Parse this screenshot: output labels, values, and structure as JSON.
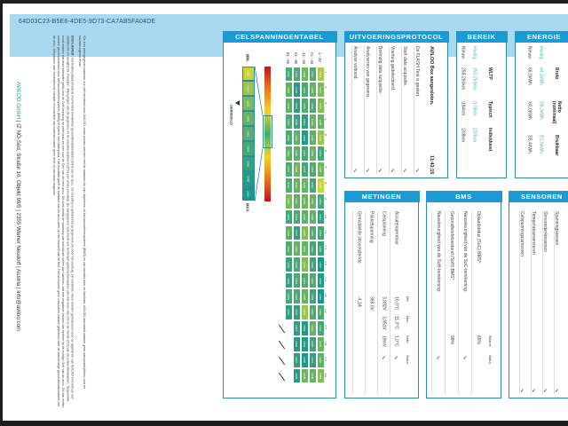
{
  "document_id": "64D03C23-B5E6-4DE5-9D73-CA7AB5FA04DE",
  "disclaimer": {
    "note": "*De hier weergegeven waarden zijn niet berekend door AVILOO, maar komen overeen met de waarden die zijn uitgelezen uit het accubeheersysteem (BMS) en zijn bepaald door de fabrikant. AVILOO aanvaardt daarom geen aansprakelijkheid voor de nauwkeurigheid ervan.",
    "label": "DISCLAIMER:",
    "text": "Het testresultaat omvat de momenteel berekende gezondheidstoestand (SoH) van de accu. De bepaling is gebaseerd op gegevens die door het voertuig zijn verstrekt. Deze worden geëvalueerd door de algoritmen van AVILOO met behulp van statistische en analytische modellen. Wijzigingen van de gegevens en de nauwkeurigheid leidt tot een ander resultaat. De aangegeven SoH heeft een technisch geldend toleranties van niet meer dan 2% in de minste (2%) van de referentiewaarden. Opgemerkt moet worden dat deze tolerantie geldt voor de SoH-bepaling op cellniveau en niet voor de SoH van de hele accu. Dit kunt omdat de spanning van individuele cellen kan variëren, wat een negatieve invloed kan hebben op de huidige SoH van de accu. Dit kan echter worden gecompenseerd door het accubeheersysteem (BMS) of tijdens een laadcyclus. Het resultaat geeft de toestand van de accu weer op het moment van de test. Hieruit kunnen geen conclusies worden getrokken over de toekomstige gezondheidstoestand van de accu. Uitspraken over mechanische schade of invloeden van buitenaf maken geen deel uit van deze diagnose."
  },
  "footer": {
    "company": "AVILOO GmbH",
    "address": " | IZ NÖ-Süd, Straße 16, Objekt 69/5 | 2355 Wiener Neudorf | Austria | info@aviloo.com"
  },
  "cells": {
    "title": "CELSPANNINGENTABEL",
    "row_labels": [
      "1 - 20",
      "21 - 40",
      "41 - 60",
      "61 - 80",
      "81 - 96"
    ],
    "col_labels": [
      "1",
      "2",
      "3",
      "4",
      "5",
      "6",
      "7",
      "8",
      "9",
      "10",
      "11",
      "12",
      "13",
      "14",
      "15",
      "16",
      "17",
      "18",
      "19",
      "20"
    ],
    "rows": [
      [
        3.833,
        3.837,
        3.836,
        3.839,
        3.834,
        3.844,
        3.838,
        3.832,
        3.843,
        3.847,
        3.844,
        3.845,
        3.851,
        3.849,
        3.851,
        3.843,
        3.844,
        3.839,
        3.84,
        3.836
      ],
      [
        3.843,
        3.839,
        3.843,
        3.839,
        3.84,
        3.839,
        3.842,
        3.844,
        3.839,
        3.84,
        3.842,
        3.844,
        3.845,
        3.842,
        3.845,
        3.842,
        3.839,
        3.845,
        3.847,
        3.839
      ],
      [
        3.838,
        3.843,
        3.842,
        3.847,
        3.849,
        3.844,
        3.844,
        3.839,
        3.838,
        3.84,
        3.836,
        3.839,
        3.836,
        3.842,
        3.839,
        3.834,
        3.849,
        3.849,
        3.85,
        3.838
      ],
      [
        3.843,
        3.849,
        3.847,
        3.845,
        3.84,
        3.84,
        3.838,
        3.839,
        3.84,
        3.843,
        3.847,
        3.839,
        3.843,
        3.843,
        3.843,
        3.847,
        3.847,
        3.849,
        3.847,
        3.849
      ],
      [
        3.843,
        3.84,
        3.84,
        3.843,
        3.843,
        3.84,
        3.842,
        3.842,
        3.837,
        3.844,
        3.84,
        3.842,
        3.845,
        3.846,
        3.843,
        3.847
      ]
    ],
    "scale_values": [
      "3.832",
      "3.834",
      "3.837",
      "3.839",
      "3.841",
      "3.844",
      "3.846",
      "3.849",
      "3.851"
    ],
    "min_label": "MIN.",
    "max_label": "MAX.",
    "avg_label": "GEMIDDELD",
    "low_color": "#c7d53a",
    "high_color": "#19988a"
  },
  "protocol": {
    "title": "UITVOERINGSPROTOCOL",
    "heading": "AVILOO Box aangesloten.",
    "time": "11:43:15",
    "items": [
      "De FLASH Test is gestart.",
      "Start data acquisitie.",
      "Voertuig gedetecteerd.",
      "Beëindig data acquisitie.",
      "Analyseren van gegevens.",
      "Analyse voltooid."
    ]
  },
  "range": {
    "title": "BEREIK",
    "headers": [
      "WLTP",
      "Typisch",
      "Individueel"
    ],
    "rows": [
      {
        "label": "Huidig:",
        "values": [
          "251-253km",
          "179km",
          "203km"
        ]
      },
      {
        "label": "Nieuw:",
        "values": [
          "258-260km",
          "184km",
          "208km"
        ]
      }
    ]
  },
  "energy": {
    "title": "ENERGIE",
    "headers": [
      "Bruto",
      "Netto (nominaal)",
      "Bruikbaar"
    ],
    "rows": [
      {
        "label": "Huidig:",
        "values": [
          "64,1kWh",
          "58,3kWh",
          "53,8kWh"
        ]
      },
      {
        "label": "Nieuw:",
        "values": [
          "66,0kWh",
          "60,0kWh",
          "55,4kWh"
        ]
      }
    ]
  },
  "measurements": {
    "title": "METINGEN",
    "headers": [
      "Min.",
      "Max.",
      "Delta",
      "Status"
    ],
    "rows": [
      {
        "label": "Accutemperatuur",
        "values": [
          "10,0°C",
          "11,0°C",
          "1,0°C"
        ],
        "status": "✓"
      },
      {
        "label": "Celspanning",
        "values": [
          "3,832V",
          "3,851V",
          "19mV"
        ],
        "status": "✓"
      },
      {
        "label": "Pakketspanning",
        "values": [
          "369,0V",
          "",
          ""
        ],
        "status": ""
      },
      {
        "label": "Gemiddelde stroomsterkte",
        "values": [
          "-4,1A",
          "",
          ""
        ],
        "status": ""
      }
    ]
  },
  "bms": {
    "title": "BMS",
    "headers": [
      "Waarde",
      "Status"
    ],
    "rows": [
      {
        "label": "Oplaadstatus (SoC) BMS*:",
        "value": "65%",
        "status": ""
      },
      {
        "label": "Nauwkeurigheid van de SoC-berekening:",
        "value": "",
        "status": "✓"
      },
      {
        "label": "Gezondheidstoestand (SoH) BMS*:",
        "value": "98%",
        "status": ""
      },
      {
        "label": "Nauwkeurigheid van de SoH-berekening:",
        "value": "",
        "status": "✓"
      }
    ]
  },
  "sensors": {
    "title": "SENSOREN",
    "rows": [
      {
        "label": "Spanningssensor",
        "status": "✓"
      },
      {
        "label": "Stroomsterktesensor",
        "status": "✓"
      },
      {
        "label": "Temperatuursensoren",
        "status": "✓"
      },
      {
        "label": "Celspanningssensoren",
        "status": "✓"
      }
    ]
  }
}
